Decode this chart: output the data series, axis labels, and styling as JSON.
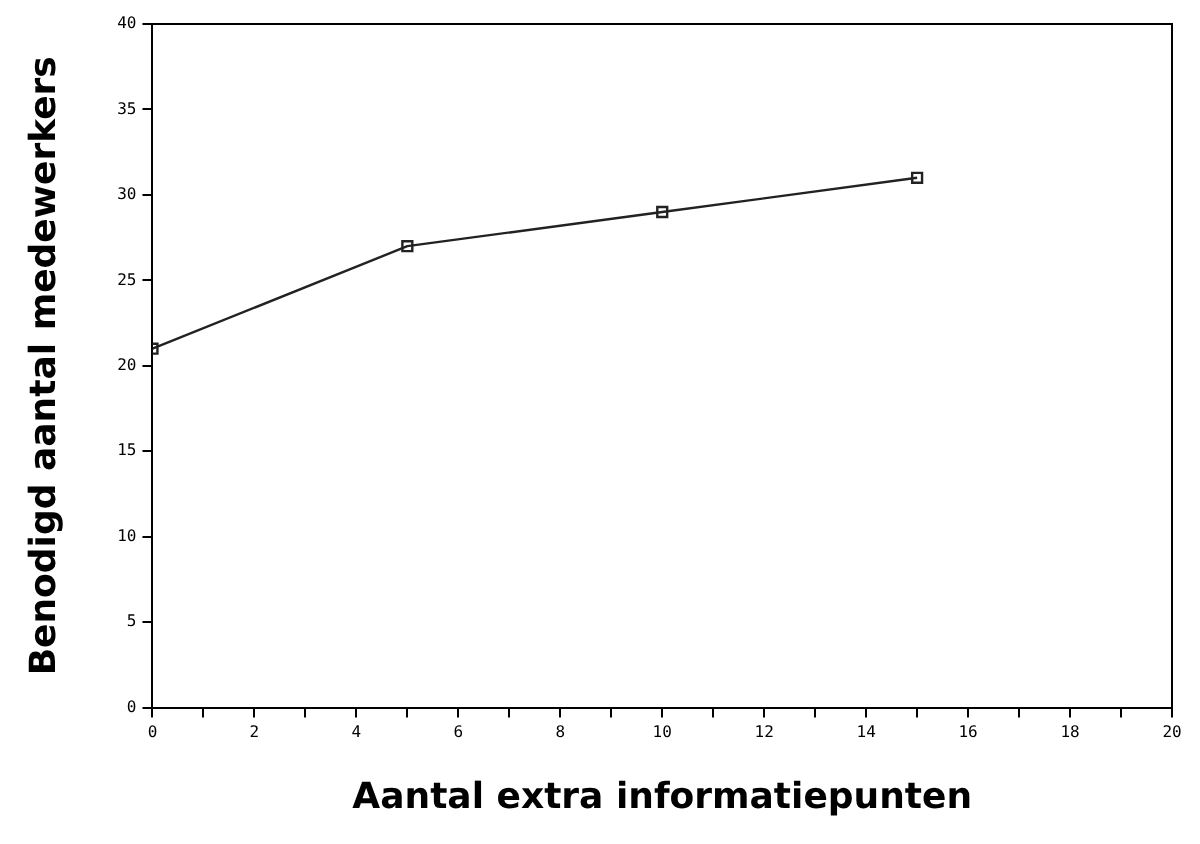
{
  "chart_data": {
    "type": "line",
    "xlabel": "Aantal extra informatiepunten",
    "ylabel": "Benodigd aantal medewerkers",
    "x": [
      0,
      5,
      10,
      15
    ],
    "series": [
      {
        "color": "#222222",
        "values": [
          21,
          27,
          29,
          31
        ]
      }
    ],
    "xlim": [
      0,
      20
    ],
    "xticks": [
      0,
      {
        "value": 1,
        "label": null
      },
      2,
      {
        "value": 3,
        "label": null
      },
      4,
      {
        "value": 5,
        "label": null
      },
      6,
      {
        "value": 7,
        "label": null
      },
      8,
      {
        "value": 9,
        "label": null
      },
      10,
      {
        "value": 11,
        "label": null
      },
      12,
      {
        "value": 13,
        "label": null
      },
      14,
      {
        "value": 15,
        "label": null
      },
      16,
      {
        "value": 17,
        "label": null
      },
      18,
      {
        "value": 19,
        "label": null
      },
      20
    ],
    "ylim": [
      0,
      40
    ],
    "yticks": [
      0,
      5,
      10,
      15,
      20,
      25,
      30,
      35,
      40
    ],
    "grid": false,
    "legend": false,
    "marker": "square",
    "line_style": "solid"
  }
}
